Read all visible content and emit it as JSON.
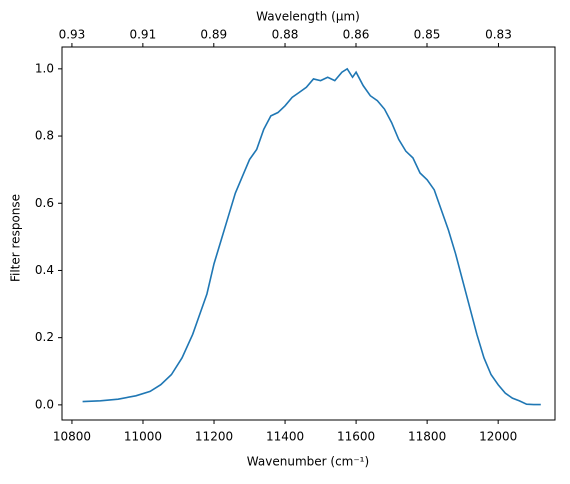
{
  "chart_data": {
    "type": "line",
    "xlabel": "Wavenumber (cm⁻¹)",
    "ylabel": "Filter response",
    "x2label": "Wavelength (μm)",
    "x": [
      10830,
      10880,
      10930,
      10980,
      11020,
      11050,
      11080,
      11110,
      11140,
      11160,
      11180,
      11200,
      11220,
      11240,
      11260,
      11280,
      11300,
      11320,
      11340,
      11360,
      11380,
      11400,
      11420,
      11440,
      11460,
      11480,
      11500,
      11520,
      11540,
      11560,
      11575,
      11590,
      11600,
      11620,
      11640,
      11660,
      11680,
      11700,
      11720,
      11740,
      11760,
      11780,
      11800,
      11820,
      11840,
      11860,
      11880,
      11900,
      11920,
      11940,
      11960,
      11980,
      12000,
      12020,
      12040,
      12060,
      12080,
      12100,
      12120
    ],
    "series": [
      {
        "color": "#1f77b4",
        "values": [
          0.01,
          0.012,
          0.017,
          0.027,
          0.04,
          0.06,
          0.09,
          0.14,
          0.21,
          0.27,
          0.33,
          0.42,
          0.49,
          0.56,
          0.63,
          0.68,
          0.73,
          0.76,
          0.82,
          0.86,
          0.87,
          0.89,
          0.915,
          0.93,
          0.945,
          0.97,
          0.965,
          0.975,
          0.965,
          0.99,
          1.0,
          0.975,
          0.99,
          0.95,
          0.92,
          0.905,
          0.88,
          0.84,
          0.79,
          0.755,
          0.735,
          0.69,
          0.67,
          0.64,
          0.58,
          0.52,
          0.45,
          0.37,
          0.29,
          0.21,
          0.14,
          0.09,
          0.06,
          0.035,
          0.02,
          0.012,
          0.002,
          0.001,
          0.001
        ]
      }
    ],
    "xlim": [
      10772,
      12160
    ],
    "ylim": [
      -0.045,
      1.065
    ],
    "xticks": [
      10800,
      11000,
      11200,
      11400,
      11600,
      11800,
      12000
    ],
    "yticks": [
      {
        "value": 0,
        "label": "0.0"
      },
      0.2,
      0.4,
      0.6,
      0.8,
      {
        "value": 1,
        "label": "1.0"
      }
    ],
    "x2lim": [
      0.9283,
      0.8224
    ],
    "x2scale": "reciprocal",
    "x2ticks": [
      {
        "value": 0.9259,
        "label": "0.93"
      },
      {
        "value": 0.9091,
        "label": "0.91"
      },
      {
        "value": 0.8929,
        "label": "0.89"
      },
      {
        "value": 0.8772,
        "label": "0.88"
      },
      {
        "value": 0.8621,
        "label": "0.86"
      },
      {
        "value": 0.8475,
        "label": "0.85"
      },
      {
        "value": 0.8333,
        "label": "0.83"
      }
    ],
    "grid": false
  }
}
